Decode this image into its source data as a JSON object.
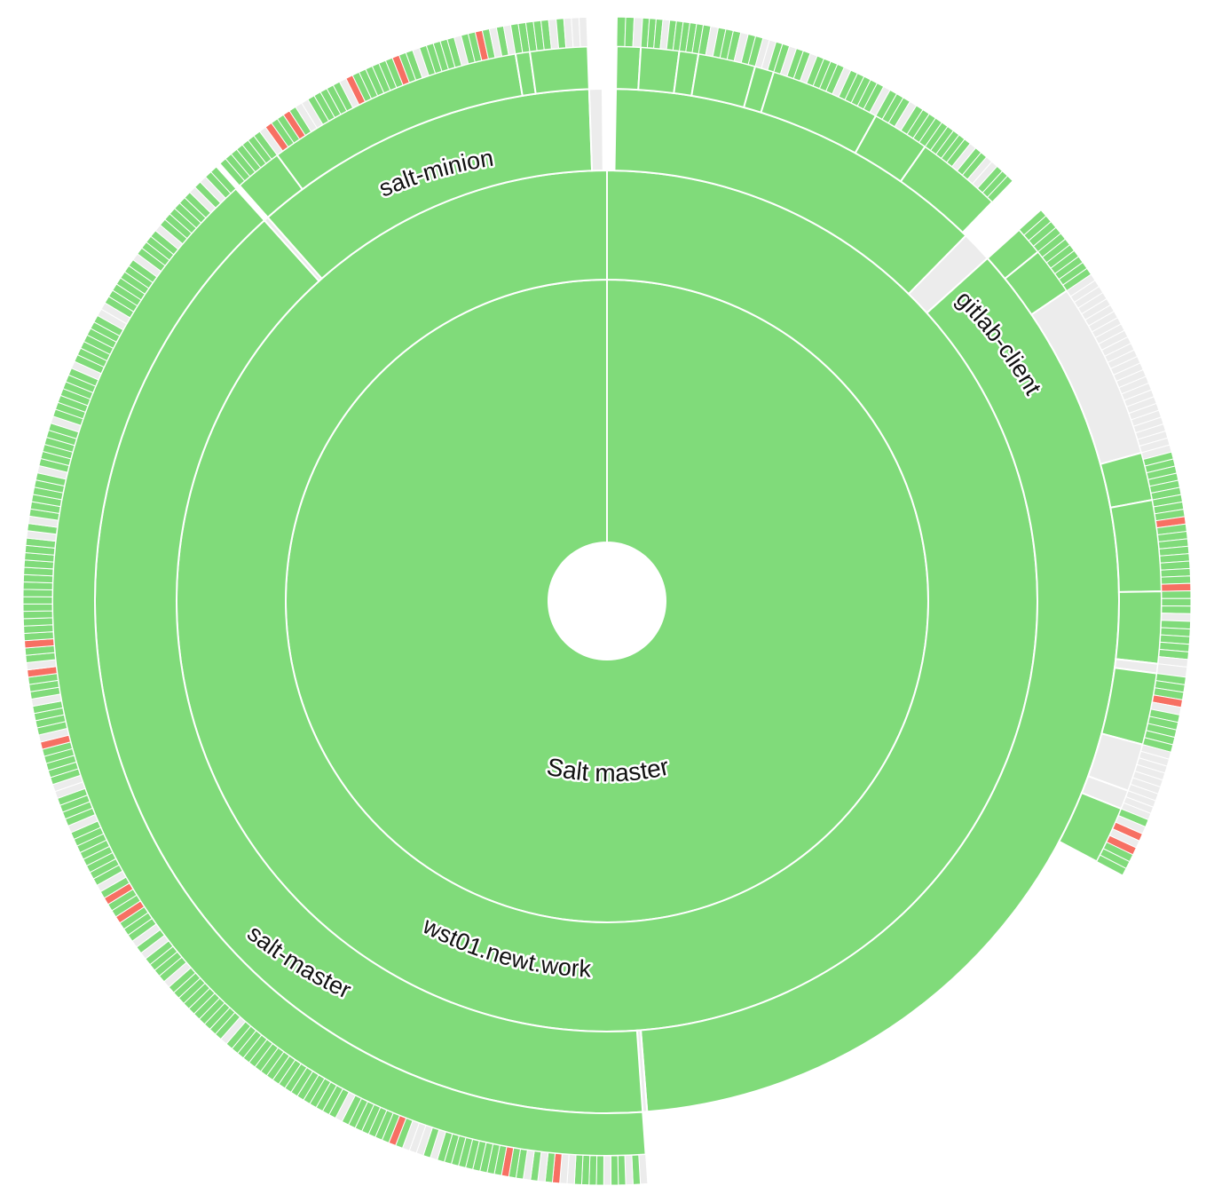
{
  "colors": {
    "success": "#80db7a",
    "pending": "#ececec",
    "failed": "#f77063",
    "separator": "#ffffff"
  },
  "diagram": {
    "root": {
      "label": "Salt master",
      "status": "success"
    },
    "labels": {
      "host": "wst01.newt.work",
      "salt_master": "salt-master",
      "salt_minion": "salt-minion",
      "gitlab_client": "gitlab-client"
    },
    "level1": [
      {
        "label": "wst01.newt.work",
        "status": "success",
        "from": 0,
        "to": 360
      }
    ],
    "level2": [
      {
        "label": "",
        "status": "success",
        "from": 1.0,
        "to": 44.5
      },
      {
        "label": "",
        "status": "pending",
        "from": 44.5,
        "to": 48.0
      },
      {
        "label": "",
        "status": "success",
        "from": 48.0,
        "to": 175.5
      },
      {
        "label": "",
        "status": "pending",
        "from": 175.5,
        "to": 176.0
      },
      {
        "label": "salt-master",
        "status": "success",
        "from": 176.0,
        "to": 318.0
      },
      {
        "label": "",
        "status": "pending",
        "from": 318.0,
        "to": 318.5
      },
      {
        "label": "salt-minion",
        "status": "success",
        "from": 318.5,
        "to": 358.0
      },
      {
        "label": "",
        "status": "pending",
        "from": 358.0,
        "to": 359.5
      }
    ],
    "level3": [
      {
        "label": "",
        "status": "success",
        "from": 1.0,
        "to": 3.5
      },
      {
        "label": "",
        "status": "success",
        "from": 3.5,
        "to": 7.5
      },
      {
        "label": "",
        "status": "success",
        "from": 7.5,
        "to": 9.5
      },
      {
        "label": "",
        "status": "success",
        "from": 9.5,
        "to": 15.5
      },
      {
        "label": "",
        "status": "success",
        "from": 15.5,
        "to": 17.5
      },
      {
        "label": "",
        "status": "success",
        "from": 17.5,
        "to": 29.0
      },
      {
        "label": "",
        "status": "success",
        "from": 29.0,
        "to": 35.0
      },
      {
        "label": "",
        "status": "success",
        "from": 35.0,
        "to": 44.0
      },
      {
        "label": "",
        "status": "success",
        "from": 48.0,
        "to": 51.0
      },
      {
        "label": "",
        "status": "success",
        "from": 51.0,
        "to": 56.0
      },
      {
        "label": "gitlab-client",
        "status": "pending",
        "from": 56.0,
        "to": 74.5
      },
      {
        "label": "",
        "status": "success",
        "from": 74.5,
        "to": 79.5
      },
      {
        "label": "",
        "status": "success",
        "from": 79.5,
        "to": 89.0
      },
      {
        "label": "",
        "status": "success",
        "from": 89.0,
        "to": 96.5
      },
      {
        "label": "",
        "status": "pending",
        "from": 96.5,
        "to": 97.5
      },
      {
        "label": "",
        "status": "success",
        "from": 97.5,
        "to": 105.0
      },
      {
        "label": "",
        "status": "pending",
        "from": 105.0,
        "to": 110.0
      },
      {
        "label": "",
        "status": "pending",
        "from": 110.0,
        "to": 112.0
      },
      {
        "label": "",
        "status": "success",
        "from": 112.0,
        "to": 118.0
      },
      {
        "label": "",
        "status": "success",
        "from": 176.0,
        "to": 318.0
      },
      {
        "label": "",
        "status": "success",
        "from": 318.5,
        "to": 323.5
      },
      {
        "label": "",
        "status": "success",
        "from": 323.5,
        "to": 350.5
      },
      {
        "label": "",
        "status": "success",
        "from": 350.5,
        "to": 352.0
      },
      {
        "label": "",
        "status": "success",
        "from": 352.0,
        "to": 358.0
      }
    ]
  }
}
